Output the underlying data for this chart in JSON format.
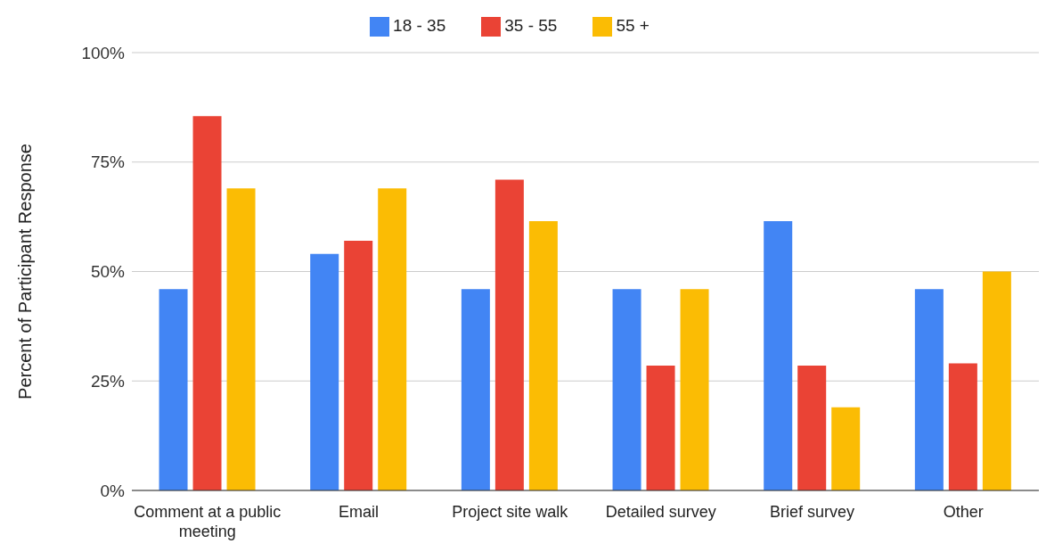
{
  "chart_data": {
    "type": "bar",
    "ylabel": "Percent of Participant Response",
    "categories": [
      "Comment at a public meeting",
      "Email",
      "Project site walk",
      "Detailed survey",
      "Brief survey",
      "Other"
    ],
    "series": [
      {
        "name": "18 - 35",
        "color": "#4285f4",
        "values": [
          46,
          54,
          46,
          46,
          61.5,
          46
        ]
      },
      {
        "name": "35 - 55",
        "color": "#ea4335",
        "values": [
          85.5,
          57,
          71,
          28.5,
          28.5,
          29
        ]
      },
      {
        "name": "55 +",
        "color": "#fbbc04",
        "values": [
          69,
          69,
          61.5,
          46,
          19,
          50
        ]
      }
    ],
    "ylim": [
      0,
      100
    ],
    "yticks": [
      {
        "value": 0,
        "label": "0%"
      },
      {
        "value": 25,
        "label": "25%"
      },
      {
        "value": 50,
        "label": "50%"
      },
      {
        "value": 75,
        "label": "75%"
      },
      {
        "value": 100,
        "label": "100%"
      }
    ],
    "grid": "y",
    "legend": "top"
  }
}
